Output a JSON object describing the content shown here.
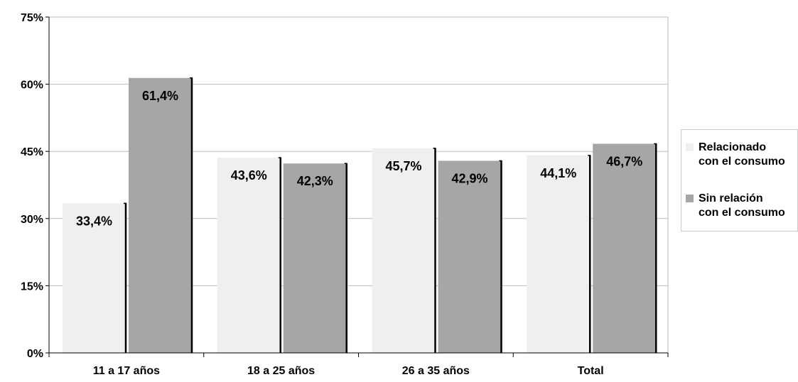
{
  "colors": {
    "series1": "#efefef",
    "series2": "#a6a6a6",
    "grid": "#bdbdbd",
    "axis": "#000000"
  },
  "chart_data": {
    "type": "bar",
    "categories": [
      "11 a 17 años",
      "18 a 25 años",
      "26 a 35 años",
      "Total"
    ],
    "series": [
      {
        "name": "Relacionado\ncon el consumo",
        "values": [
          33.4,
          43.6,
          45.7,
          44.1
        ],
        "labels": [
          "33,4%",
          "43,6%",
          "45,7%",
          "44,1%"
        ]
      },
      {
        "name": "Sin relación\ncon el consumo",
        "values": [
          61.4,
          42.3,
          42.9,
          46.7
        ],
        "labels": [
          "61,4%",
          "42,3%",
          "42,9%",
          "46,7%"
        ]
      }
    ],
    "ylim": [
      0,
      75
    ],
    "yticks": [
      0,
      15,
      30,
      45,
      60,
      75
    ],
    "ytick_labels": [
      "0%",
      "15%",
      "30%",
      "45%",
      "60%",
      "75%"
    ],
    "grid": true,
    "legend_position": "right"
  }
}
